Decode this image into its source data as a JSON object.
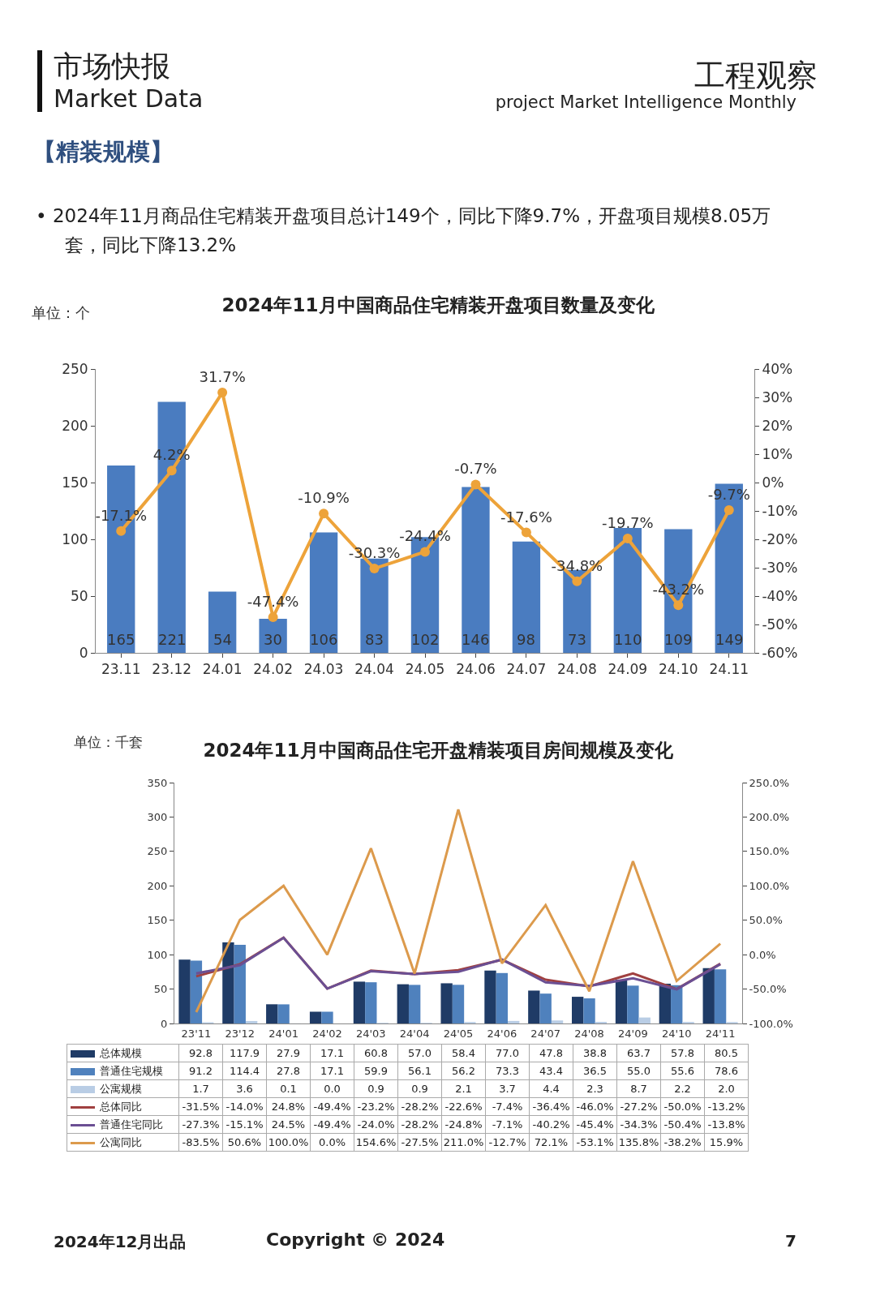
{
  "chart_data": [
    {
      "type": "bar",
      "title": "2024年11月中国商品住宅精装开盘项目数量及变化",
      "ylabel": "单位：个",
      "annotations": [
        "市场快报",
        "Market Data",
        "工程观察",
        "project Market Intelligence Monthly",
        "【精装规模】",
        "•  2024年11月商品住宅精装开盘项目总计149个，同比下降9.7%，开盘项目规模8.05万套，同比下降13.2%"
      ],
      "categories": [
        "23.11",
        "23.12",
        "24.01",
        "24.02",
        "24.03",
        "24.04",
        "24.05",
        "24.06",
        "24.07",
        "24.08",
        "24.09",
        "24.10",
        "24.11"
      ],
      "series": [
        {
          "color": "#4a7cc0",
          "values": [
            165,
            221,
            54,
            30,
            106,
            83,
            102,
            146,
            98,
            73,
            110,
            109,
            149
          ],
          "value_labels": [
            "165",
            "221",
            "54",
            "30",
            "106",
            "83",
            "102",
            "146",
            "98",
            "73",
            "110",
            "109",
            "149"
          ]
        },
        {
          "type": "line",
          "axis": "y2",
          "color": "#eda33a",
          "values": [
            -17.1,
            4.2,
            31.7,
            -47.4,
            -10.9,
            -30.3,
            -24.4,
            -0.7,
            -17.6,
            -34.8,
            -19.7,
            -43.2,
            -9.7
          ],
          "value_labels": [
            "-17.1%",
            "4.2%",
            "31.7%",
            "-47.4%",
            "-10.9%",
            "-30.3%",
            "-24.4%",
            "-0.7%",
            "-17.6%",
            "-34.8%",
            "-19.7%",
            "-43.2%",
            "-9.7%"
          ]
        }
      ],
      "ylim": [
        0,
        250
      ],
      "yticks": [
        0,
        50,
        100,
        150,
        200,
        250
      ],
      "y2lim": [
        -60,
        40
      ],
      "y2ticks": [
        {
          "value": -60,
          "label": "-60%"
        },
        {
          "value": -50,
          "label": "-50%"
        },
        {
          "value": -40,
          "label": "-40%"
        },
        {
          "value": -30,
          "label": "-30%"
        },
        {
          "value": -20,
          "label": "-20%"
        },
        {
          "value": -10,
          "label": "-10%"
        },
        {
          "value": 0,
          "label": "0%"
        },
        {
          "value": 10,
          "label": "10%"
        },
        {
          "value": 20,
          "label": "20%"
        },
        {
          "value": 30,
          "label": "30%"
        },
        {
          "value": 40,
          "label": "40%"
        }
      ],
      "marker": "circle",
      "grid": false,
      "legend": false
    },
    {
      "type": "bar",
      "title": "2024年11月中国商品住宅开盘精装项目房间规模及变化",
      "ylabel": "单位：千套",
      "annotations": [
        "2024年12月出品",
        "Copyright © 2024",
        "7"
      ],
      "categories": [
        "23'11",
        "23'12",
        "24'01",
        "24'02",
        "24'03",
        "24'04",
        "24'05",
        "24'06",
        "24'07",
        "24'08",
        "24'09",
        "24'10",
        "24'11"
      ],
      "series": [
        {
          "name": "总体规模",
          "color": "#1f3b66",
          "values": [
            92.8,
            117.9,
            27.9,
            17.1,
            60.8,
            57.0,
            58.4,
            77.0,
            47.8,
            38.8,
            63.7,
            57.8,
            80.5
          ],
          "value_labels": [
            "92.8",
            "117.9",
            "27.9",
            "17.1",
            "60.8",
            "57.0",
            "58.4",
            "77.0",
            "47.8",
            "38.8",
            "63.7",
            "57.8",
            "80.5"
          ]
        },
        {
          "name": "普通住宅规模",
          "color": "#4f81bd",
          "values": [
            91.2,
            114.4,
            27.8,
            17.1,
            59.9,
            56.1,
            56.2,
            73.3,
            43.4,
            36.5,
            55.0,
            55.6,
            78.6
          ],
          "value_labels": [
            "91.2",
            "114.4",
            "27.8",
            "17.1",
            "59.9",
            "56.1",
            "56.2",
            "73.3",
            "43.4",
            "36.5",
            "55.0",
            "55.6",
            "78.6"
          ]
        },
        {
          "name": "公寓规模",
          "color": "#b9cde5",
          "values": [
            1.7,
            3.6,
            0.1,
            0.0,
            0.9,
            0.9,
            2.1,
            3.7,
            4.4,
            2.3,
            8.7,
            2.2,
            2.0
          ],
          "value_labels": [
            "1.7",
            "3.6",
            "0.1",
            "0.0",
            "0.9",
            "0.9",
            "2.1",
            "3.7",
            "4.4",
            "2.3",
            "8.7",
            "2.2",
            "2.0"
          ]
        },
        {
          "type": "line",
          "axis": "y2",
          "name": "总体同比",
          "color": "#a04040",
          "values": [
            -31.5,
            -14.0,
            24.8,
            -49.4,
            -23.2,
            -28.2,
            -22.6,
            -7.4,
            -36.4,
            -46.0,
            -27.2,
            -50.0,
            -13.2
          ],
          "value_labels": [
            "-31.5%",
            "-14.0%",
            "24.8%",
            "-49.4%",
            "-23.2%",
            "-28.2%",
            "-22.6%",
            "-7.4%",
            "-36.4%",
            "-46.0%",
            "-27.2%",
            "-50.0%",
            "-13.2%"
          ]
        },
        {
          "type": "line",
          "axis": "y2",
          "name": "普通住宅同比",
          "color": "#6b4f93",
          "values": [
            -27.3,
            -15.1,
            24.5,
            -49.4,
            -24.0,
            -28.2,
            -24.8,
            -7.1,
            -40.2,
            -45.4,
            -34.3,
            -50.4,
            -13.8
          ],
          "value_labels": [
            "-27.3%",
            "-15.1%",
            "24.5%",
            "-49.4%",
            "-24.0%",
            "-28.2%",
            "-24.8%",
            "-7.1%",
            "-40.2%",
            "-45.4%",
            "-34.3%",
            "-50.4%",
            "-13.8%"
          ]
        },
        {
          "type": "line",
          "axis": "y2",
          "name": "公寓同比",
          "color": "#dc9a4c",
          "values": [
            -83.5,
            50.6,
            100.0,
            0.0,
            154.6,
            -27.5,
            211.0,
            -12.7,
            72.1,
            -53.1,
            135.8,
            -38.2,
            15.9
          ],
          "value_labels": [
            "-83.5%",
            "50.6%",
            "100.0%",
            "0.0%",
            "154.6%",
            "-27.5%",
            "211.0%",
            "-12.7%",
            "72.1%",
            "-53.1%",
            "135.8%",
            "-38.2%",
            "15.9%"
          ]
        }
      ],
      "ylim": [
        0,
        350
      ],
      "yticks": [
        0,
        50,
        100,
        150,
        200,
        250,
        300,
        350
      ],
      "y2lim": [
        -100,
        250
      ],
      "y2ticks": [
        {
          "value": -100,
          "label": "-100.0%"
        },
        {
          "value": -50,
          "label": "-50.0%"
        },
        {
          "value": 0,
          "label": "0.0%"
        },
        {
          "value": 50,
          "label": "50.0%"
        },
        {
          "value": 100,
          "label": "100.0%"
        },
        {
          "value": 150,
          "label": "150.0%"
        },
        {
          "value": 200,
          "label": "200.0%"
        },
        {
          "value": 250,
          "label": "250.0%"
        }
      ],
      "marker": "none",
      "grid": false,
      "legend": "bottom"
    }
  ]
}
